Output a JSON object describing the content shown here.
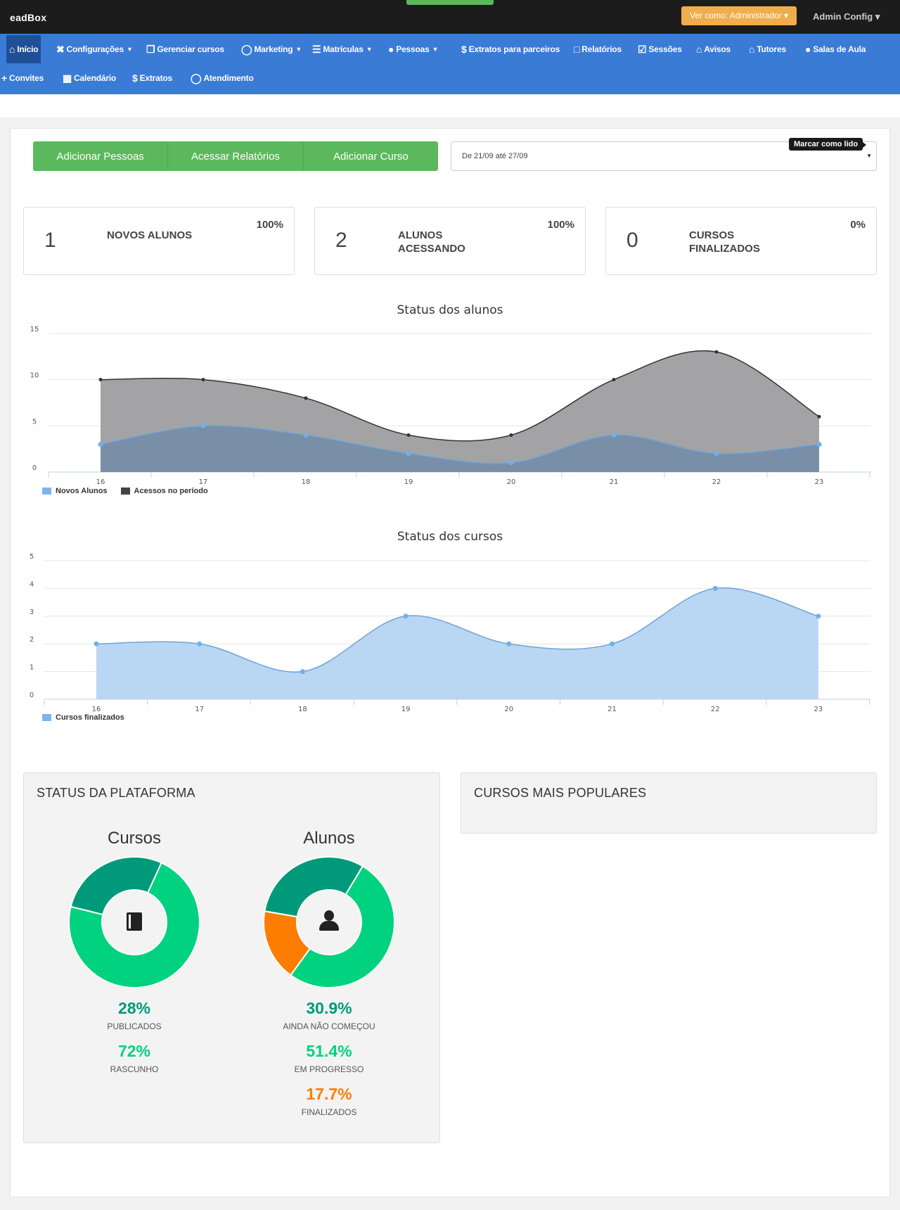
{
  "topbar": {
    "logo": "eadBox",
    "role_button": "Ver como: Administrador ▾",
    "admin_menu": "Admin Config ▾"
  },
  "nav": {
    "items": [
      {
        "label": "Início",
        "icon": "home-icon"
      },
      {
        "label": "Configurações",
        "icon": "tools-icon"
      },
      {
        "label": "Gerenciar cursos",
        "icon": "copy-icon"
      },
      {
        "label": "Marketing",
        "icon": "lightbulb-icon"
      },
      {
        "label": "Matrículas",
        "icon": "layers-icon"
      },
      {
        "label": "Pessoas",
        "icon": "user-icon"
      },
      {
        "label": "Extratos para parceiros",
        "icon": "dollar-icon"
      },
      {
        "label": "Relatórios",
        "icon": "bar-chart-icon"
      },
      {
        "label": "Sessões",
        "icon": "checkbox-icon"
      },
      {
        "label": "Avisos",
        "icon": "home-icon"
      },
      {
        "label": "Tutores",
        "icon": "home-icon"
      },
      {
        "label": "Salas de Aula",
        "icon": "group-icon"
      },
      {
        "label": "Convites",
        "icon": "add-user-icon"
      },
      {
        "label": "Calendário",
        "icon": "calendar-icon"
      },
      {
        "label": "Extratos",
        "icon": "dollar-icon"
      },
      {
        "label": "Atendimento",
        "icon": "lightbulb-icon"
      }
    ]
  },
  "actions": {
    "add_people": "Adicionar Pessoas",
    "reports": "Acessar Relatórios",
    "add_course": "Adicionar Curso"
  },
  "date_filter": {
    "value": "De 21/09 até 27/09",
    "tooltip": "Marcar como lido"
  },
  "stats": [
    {
      "value": "1",
      "label": "NOVOS ALUNOS",
      "pct": "100%"
    },
    {
      "value": "2",
      "label": "ALUNOS ACESSANDO",
      "pct": "100%"
    },
    {
      "value": "0",
      "label": "CURSOS FINALIZADOS",
      "pct": "0%"
    }
  ],
  "chart_data": [
    {
      "type": "area",
      "title": "Status dos alunos",
      "x": [
        "16",
        "17",
        "18",
        "19",
        "20",
        "21",
        "22",
        "23"
      ],
      "ylim": [
        0,
        15
      ],
      "yticks": [
        "0",
        "5",
        "10",
        "15"
      ],
      "grid": true,
      "legend_position": "bottom-left",
      "series": [
        {
          "name": "Novos Alunos",
          "values": [
            3,
            5,
            4,
            2,
            1,
            4,
            2,
            3
          ],
          "color": "#7cb5ec"
        },
        {
          "name": "Acessos no período",
          "values": [
            10,
            10,
            8,
            4,
            4,
            10,
            13,
            6
          ],
          "color": "#434348"
        }
      ]
    },
    {
      "type": "area",
      "title": "Status dos cursos",
      "x": [
        "16",
        "17",
        "18",
        "19",
        "20",
        "21",
        "22",
        "23"
      ],
      "ylim": [
        0,
        5
      ],
      "yticks": [
        "0",
        "1",
        "2",
        "3",
        "4",
        "5"
      ],
      "grid": true,
      "legend_position": "bottom-left",
      "series": [
        {
          "name": "Cursos finalizados",
          "values": [
            2,
            2,
            1,
            3,
            2,
            2,
            4,
            3
          ],
          "color": "#7cb5ec"
        }
      ]
    },
    {
      "type": "pie",
      "title": "Cursos",
      "slices": [
        {
          "label": "PUBLICADOS",
          "value": 28,
          "display": "28%",
          "color": "#009a7a"
        },
        {
          "label": "RASCUNHO",
          "value": 72,
          "display": "72%",
          "color": "#00d27f"
        }
      ]
    },
    {
      "type": "pie",
      "title": "Alunos",
      "slices": [
        {
          "label": "AINDA NÃO COMEÇOU",
          "value": 30.9,
          "display": "30.9%",
          "color": "#009a7a"
        },
        {
          "label": "EM PROGRESSO",
          "value": 51.4,
          "display": "51.4%",
          "color": "#00d27f"
        },
        {
          "label": "FINALIZADOS",
          "value": 17.7,
          "display": "17.7%",
          "color": "#fc7d02"
        }
      ]
    }
  ],
  "platform": {
    "title": "STATUS DA PLATAFORMA",
    "courses_icon": "book-icon",
    "students_icon": "person-icon"
  },
  "popular": {
    "title": "CURSOS MAIS POPULARES"
  }
}
